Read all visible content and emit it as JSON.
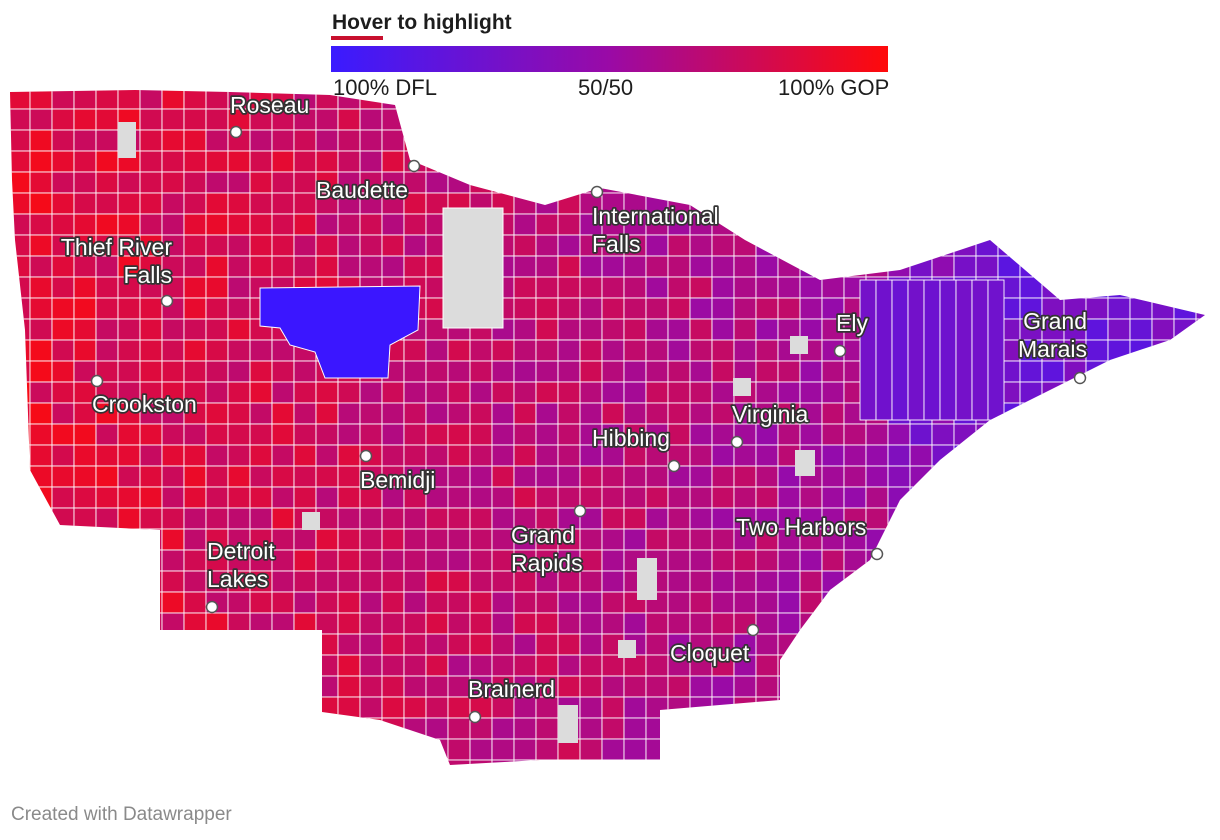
{
  "header": {
    "title": "Hover to highlight",
    "underline_color": "#c8102e"
  },
  "legend": {
    "left_label": "100% DFL",
    "mid_label": "50/50",
    "right_label": "100% GOP",
    "gradient": [
      "#3a1bff",
      "#9a0aa6",
      "#ff0a0a"
    ]
  },
  "map": {
    "description_colors": {
      "dfl": "#3a1bff",
      "gop": "#ff0a0a",
      "no_data": "#dcdcdc",
      "border": "#ffffff"
    },
    "cities": [
      {
        "name": "Roseau"
      },
      {
        "name": "Baudette"
      },
      {
        "name": "International Falls",
        "lines": [
          "International",
          "Falls"
        ]
      },
      {
        "name": "Thief River Falls",
        "lines": [
          "Thief River",
          "Falls"
        ]
      },
      {
        "name": "Ely"
      },
      {
        "name": "Grand Marais",
        "lines": [
          "Grand",
          "Marais"
        ]
      },
      {
        "name": "Crookston"
      },
      {
        "name": "Virginia"
      },
      {
        "name": "Hibbing"
      },
      {
        "name": "Bemidji"
      },
      {
        "name": "Two Harbors"
      },
      {
        "name": "Detroit Lakes",
        "lines": [
          "Detroit",
          "Lakes"
        ]
      },
      {
        "name": "Grand Rapids",
        "lines": [
          "Grand",
          "Rapids"
        ]
      },
      {
        "name": "Cloquet"
      },
      {
        "name": "Brainerd"
      }
    ]
  },
  "footer": {
    "credit": "Created with Datawrapper"
  }
}
